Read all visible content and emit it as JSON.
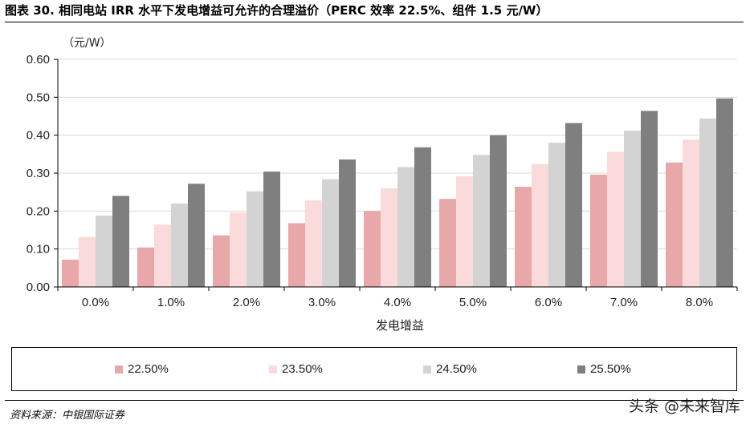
{
  "header": {
    "title": "图表 30. 相同电站 IRR 水平下发电增益可允许的合理溢价（PERC 效率 22.5%、组件 1.5 元/W）"
  },
  "footer": {
    "source": "资料来源：中银国际证券",
    "watermark": "头条 @未来智库"
  },
  "chart_data": {
    "type": "bar",
    "title": "图表 30. 相同电站 IRR 水平下发电增益可允许的合理溢价（PERC 效率 22.5%、组件 1.5 元/W）",
    "xlabel": "发电增益",
    "ylabel": "（元/W）",
    "ylim": [
      0,
      0.6
    ],
    "yticks": [
      "0.00",
      "0.10",
      "0.20",
      "0.30",
      "0.40",
      "0.50",
      "0.60"
    ],
    "categories": [
      "0.0%",
      "1.0%",
      "2.0%",
      "3.0%",
      "4.0%",
      "5.0%",
      "6.0%",
      "7.0%",
      "8.0%"
    ],
    "series": [
      {
        "name": "22.50%",
        "color": "#e8a8aa",
        "values": [
          0.072,
          0.104,
          0.136,
          0.168,
          0.2,
          0.232,
          0.264,
          0.296,
          0.328
        ]
      },
      {
        "name": "23.50%",
        "color": "#fadada",
        "values": [
          0.132,
          0.164,
          0.196,
          0.228,
          0.26,
          0.292,
          0.324,
          0.356,
          0.388
        ]
      },
      {
        "name": "24.50%",
        "color": "#d3d3d3",
        "values": [
          0.188,
          0.22,
          0.252,
          0.284,
          0.316,
          0.348,
          0.38,
          0.412,
          0.444
        ]
      },
      {
        "name": "25.50%",
        "color": "#7f7f7f",
        "values": [
          0.24,
          0.272,
          0.304,
          0.336,
          0.368,
          0.4,
          0.432,
          0.464,
          0.497
        ]
      }
    ],
    "grid": true,
    "legend_position": "bottom"
  }
}
